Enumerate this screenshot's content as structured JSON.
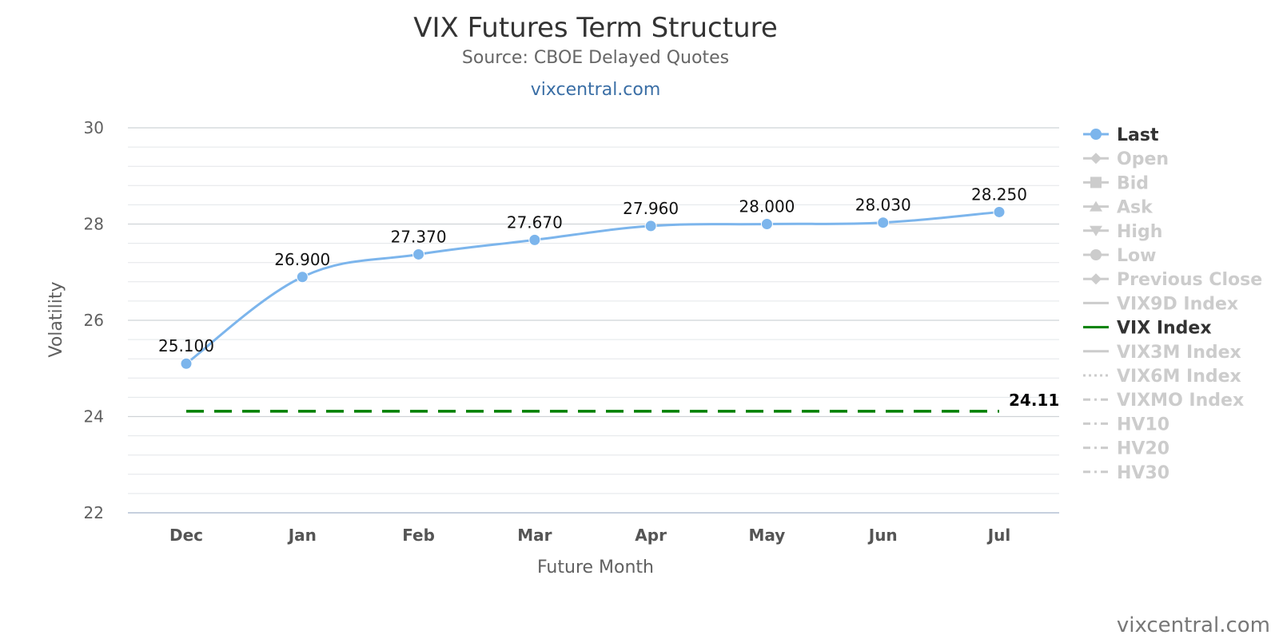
{
  "chart_data": {
    "type": "line",
    "title": "VIX Futures Term Structure",
    "subtitle": "Source: CBOE Delayed Quotes",
    "site_link": "vixcentral.com",
    "credit": "vixcentral.com",
    "xlabel": "Future Month",
    "ylabel": "Volatility",
    "ylim": [
      22,
      30
    ],
    "yticks": [
      22,
      24,
      26,
      28,
      30
    ],
    "grid": true,
    "legend_position": "right",
    "categories": [
      "Dec",
      "Jan",
      "Feb",
      "Mar",
      "Apr",
      "May",
      "Jun",
      "Jul"
    ],
    "series": [
      {
        "name": "Last",
        "values": [
          25.1,
          26.9,
          27.37,
          27.67,
          27.96,
          28.0,
          28.03,
          28.25
        ],
        "labels": [
          "25.100",
          "26.900",
          "27.370",
          "27.670",
          "27.960",
          "28.000",
          "28.030",
          "28.250"
        ],
        "color": "#7cb5ec"
      },
      {
        "name": "VIX Index",
        "value": 24.11,
        "label": "24.11",
        "color": "#008000",
        "style": "dashed"
      }
    ],
    "legend": [
      {
        "name": "Last",
        "marker": "circle",
        "line": "solid",
        "active": true,
        "color": "#7cb5ec"
      },
      {
        "name": "Open",
        "marker": "diamond",
        "line": "solid",
        "active": false
      },
      {
        "name": "Bid",
        "marker": "square",
        "line": "solid",
        "active": false
      },
      {
        "name": "Ask",
        "marker": "triangle",
        "line": "solid",
        "active": false
      },
      {
        "name": "High",
        "marker": "triangle-down",
        "line": "solid",
        "active": false
      },
      {
        "name": "Low",
        "marker": "circle",
        "line": "solid",
        "active": false
      },
      {
        "name": "Previous Close",
        "marker": "diamond",
        "line": "solid",
        "active": false
      },
      {
        "name": "VIX9D Index",
        "marker": "none",
        "line": "solid",
        "active": false
      },
      {
        "name": "VIX Index",
        "marker": "none",
        "line": "solid",
        "active": true,
        "color": "#008000"
      },
      {
        "name": "VIX3M Index",
        "marker": "none",
        "line": "solid",
        "active": false
      },
      {
        "name": "VIX6M Index",
        "marker": "none",
        "line": "dotted",
        "active": false
      },
      {
        "name": "VIXMO Index",
        "marker": "none",
        "line": "dashdot",
        "active": false
      },
      {
        "name": "HV10",
        "marker": "none",
        "line": "dashdot",
        "active": false
      },
      {
        "name": "HV20",
        "marker": "none",
        "line": "dashdot",
        "active": false
      },
      {
        "name": "HV30",
        "marker": "none",
        "line": "dashdot",
        "active": false
      }
    ],
    "inactive_color": "#cccccc",
    "active_text_color": "#333333"
  }
}
